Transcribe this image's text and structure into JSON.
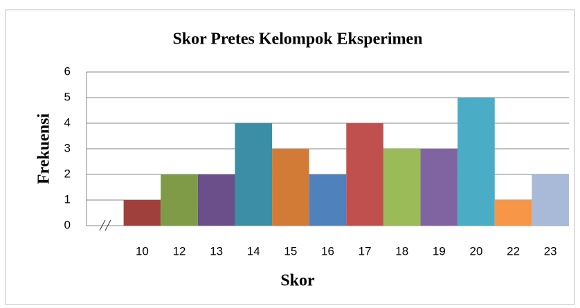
{
  "chart_data": {
    "type": "bar",
    "title": "Skor Pretes Kelompok Eksperimen",
    "x_label": "Skor",
    "y_label": "Frekuensi",
    "categories": [
      "10",
      "12",
      "13",
      "14",
      "15",
      "16",
      "17",
      "18",
      "19",
      "20",
      "22",
      "23"
    ],
    "values": [
      1,
      2,
      2,
      4,
      3,
      2,
      4,
      3,
      3,
      5,
      1,
      2
    ],
    "colors": [
      "#a0403d",
      "#7f9b48",
      "#6a4f8b",
      "#3b8ea5",
      "#d27b36",
      "#4f81bd",
      "#c0504d",
      "#9bbb59",
      "#8064a2",
      "#4bacc6",
      "#f79646",
      "#a9bad8"
    ],
    "ylim": [
      0,
      6
    ],
    "yticks": [
      0,
      1,
      2,
      3,
      4,
      5,
      6
    ],
    "grid": true
  }
}
